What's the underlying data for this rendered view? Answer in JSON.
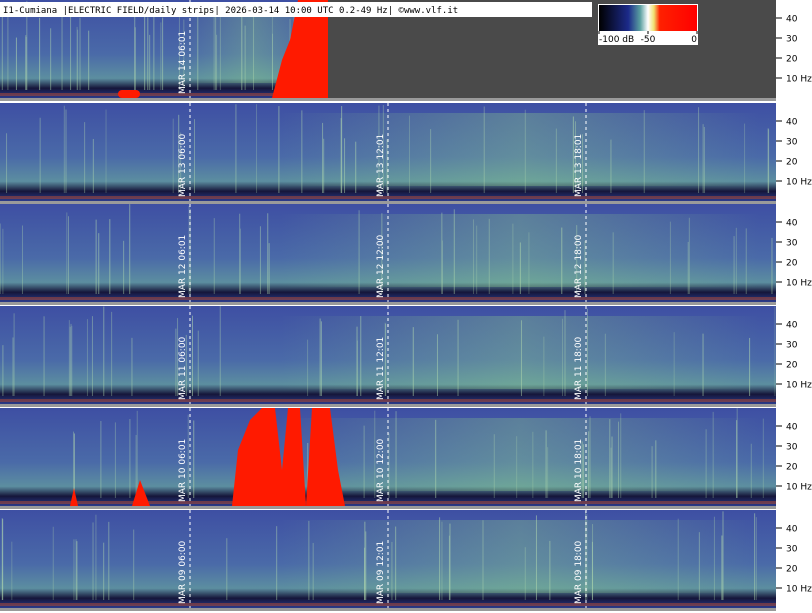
{
  "header": {
    "title": "I1-Cumiana |ELECTRIC FIELD/daily strips| 2026-03-14 10:00 UTC 0.2-49 Hz| ©www.vlf.it"
  },
  "colorbar": {
    "ticks": [
      {
        "value": -100,
        "label": "-100 dB"
      },
      -50,
      0
    ],
    "lim": [
      -100,
      0
    ]
  },
  "frequency_axis": {
    "ylim": [
      0,
      49
    ],
    "yticks": [
      {
        "value": 10,
        "label": "10 Hz"
      },
      20,
      30,
      40
    ]
  },
  "strips": [
    {
      "labels": [
        "MAR 14  06:01"
      ]
    },
    {
      "labels": [
        "MAR 13  06:00",
        "MAR 13  12:01",
        "MAR 13  18:01"
      ]
    },
    {
      "labels": [
        "MAR 12  06:01",
        "MAR 12  12:00",
        "MAR 12  18:00"
      ]
    },
    {
      "labels": [
        "MAR 11  06:00",
        "MAR 11  12:01",
        "MAR 11  18:00"
      ]
    },
    {
      "labels": [
        "MAR 10  06:01",
        "MAR 10  12:00",
        "MAR 10  18:01"
      ]
    },
    {
      "labels": [
        "MAR 09  06:00",
        "MAR 09  12:01",
        "MAR 09  18:00"
      ]
    }
  ]
}
